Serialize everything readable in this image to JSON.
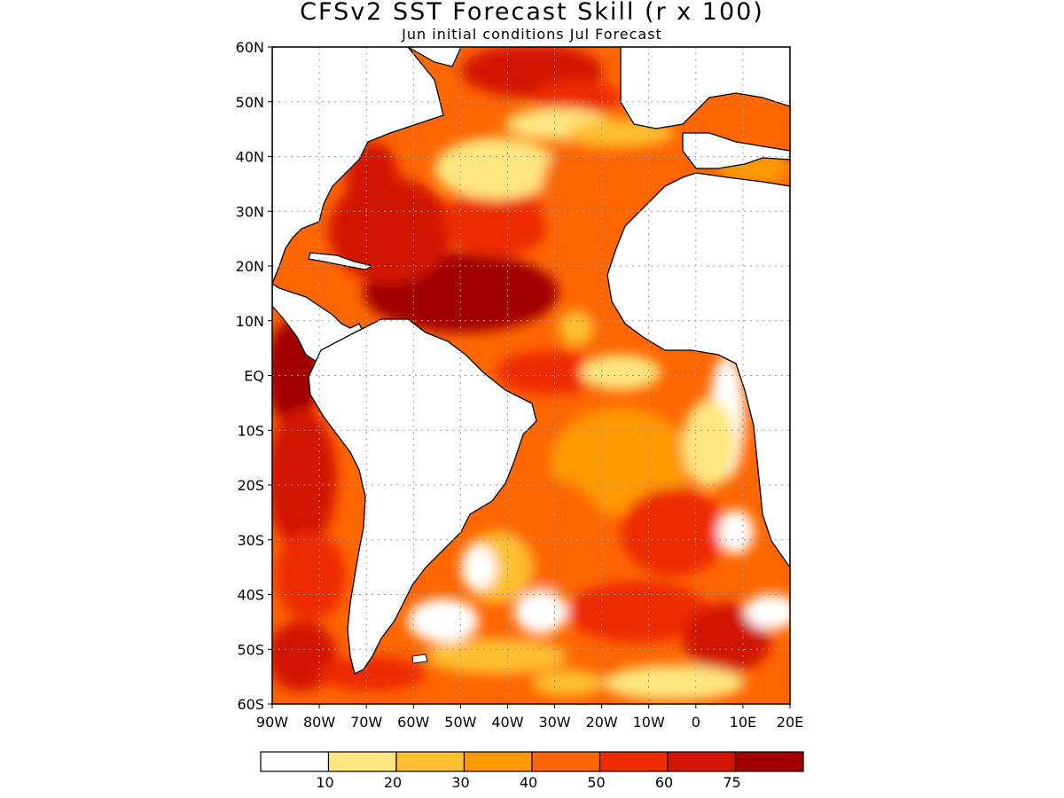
{
  "title": "CFSv2 SST Forecast Skill (r x 100)",
  "subtitle": "Jun initial conditions  Jul Forecast",
  "map": {
    "lon_range": [
      -90,
      20
    ],
    "lat_range": [
      -60,
      60
    ],
    "grid": true,
    "lat_tick_labels": [
      "60N",
      "50N",
      "40N",
      "30N",
      "20N",
      "10N",
      "EQ",
      "10S",
      "20S",
      "30S",
      "40S",
      "50S",
      "60S"
    ],
    "lon_tick_labels": [
      "90W",
      "80W",
      "70W",
      "60W",
      "50W",
      "40W",
      "30W",
      "20W",
      "10W",
      "0",
      "10E",
      "20E"
    ]
  },
  "colorbar": {
    "colors": [
      "#ffffff",
      "#ffe680",
      "#ffbf33",
      "#ff9900",
      "#ff6600",
      "#ee2c00",
      "#d11500",
      "#a00000"
    ],
    "labels": [
      "10",
      "20",
      "30",
      "40",
      "50",
      "60",
      "75"
    ]
  },
  "colors": {
    "land": "#ffffff",
    "coast": "#000000",
    "grid": "#9a9a9a"
  }
}
